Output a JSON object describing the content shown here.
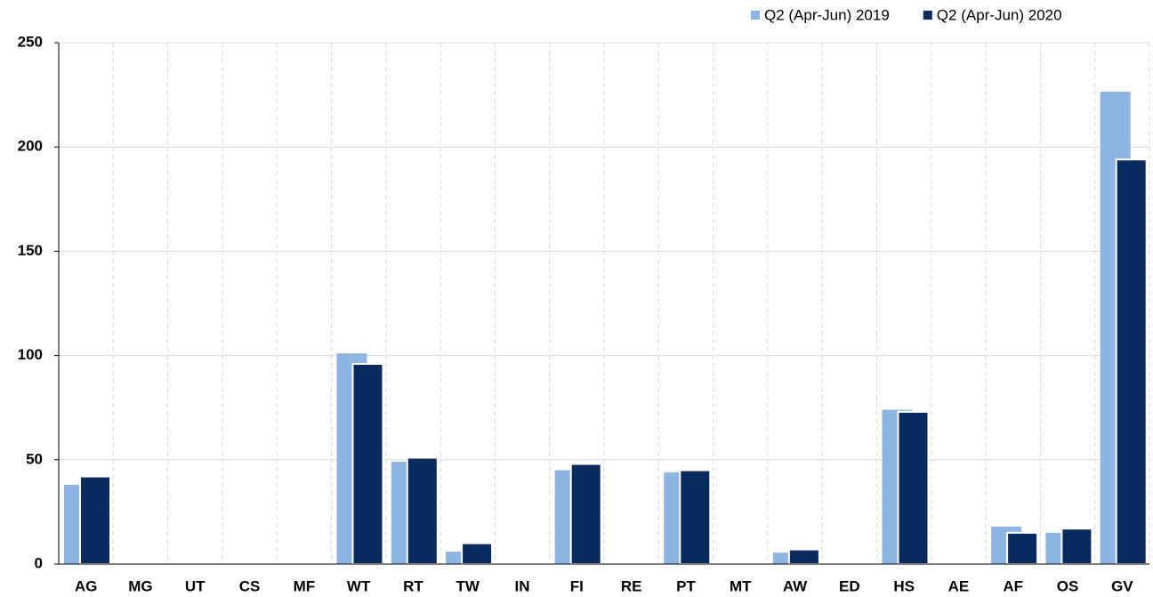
{
  "chart_data": {
    "type": "bar",
    "categories": [
      "AG",
      "MG",
      "UT",
      "CS",
      "MF",
      "WT",
      "RT",
      "TW",
      "IN",
      "FI",
      "RE",
      "PT",
      "MT",
      "AW",
      "ED",
      "HS",
      "AE",
      "AF",
      "OS",
      "GV"
    ],
    "series": [
      {
        "name": "Q2 (Apr-Jun) 2019",
        "color": "#8eb4e3",
        "values": [
          38,
          null,
          null,
          null,
          null,
          101,
          49,
          6,
          null,
          45,
          null,
          44,
          null,
          5.5,
          null,
          74,
          null,
          18,
          15,
          226.5
        ]
      },
      {
        "name": "Q2 (Apr-Jun) 2020",
        "color": "#0b2a5e",
        "values": [
          42,
          null,
          null,
          null,
          null,
          96,
          51,
          10,
          null,
          48,
          null,
          45,
          null,
          7,
          null,
          73,
          null,
          15,
          17,
          194
        ]
      }
    ],
    "ylim": [
      0,
      250
    ],
    "yticks": [
      0,
      50,
      100,
      150,
      200,
      250
    ],
    "grid": true,
    "legend": "top-right"
  }
}
